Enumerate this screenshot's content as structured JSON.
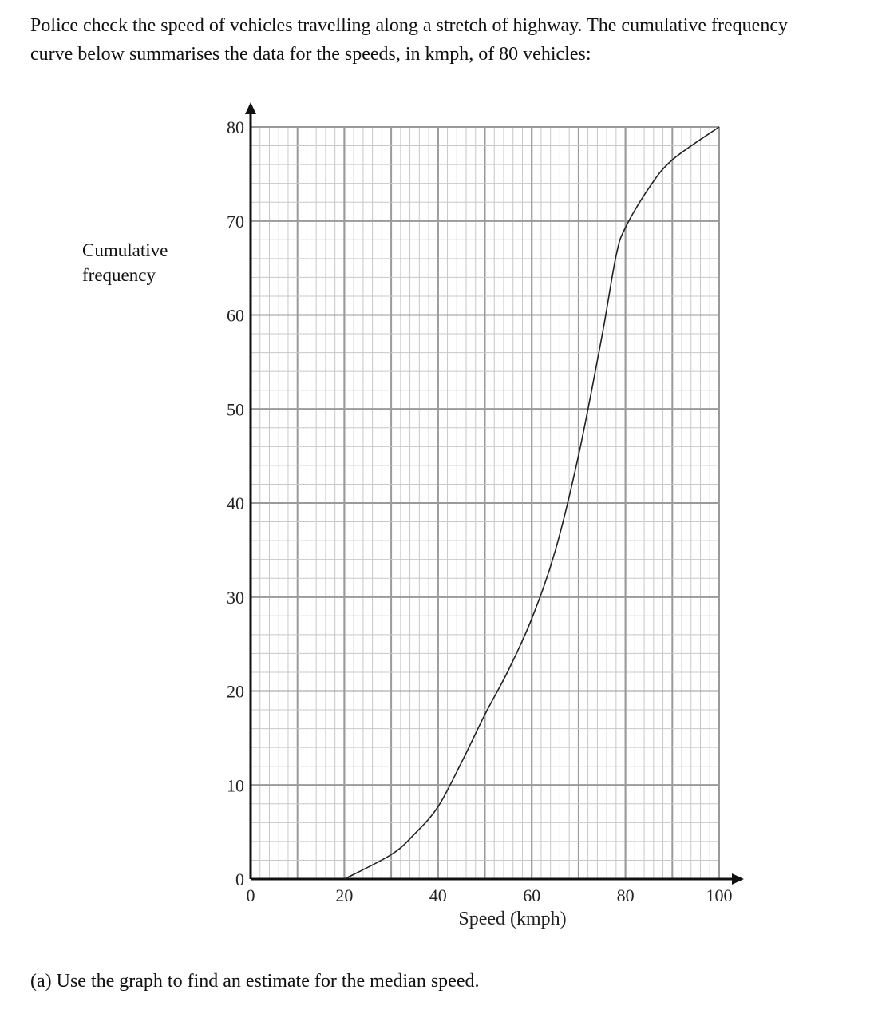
{
  "question": "Police check the speed of vehicles travelling along a stretch of highway.  The cumulative frequency curve below summarises the data for the speeds, in kmph, of 80 vehicles:",
  "part_a": "(a) Use the graph to find an estimate for the median speed.",
  "chart_data": {
    "type": "line",
    "xlabel": "Speed (kmph)",
    "ylabel": "Cumulative frequency",
    "x": [
      20,
      30,
      35,
      40,
      45,
      50,
      55,
      60,
      65,
      70,
      75,
      78,
      80,
      85,
      90,
      100
    ],
    "values": [
      0,
      2.6,
      4.8,
      7.7,
      12.4,
      17.5,
      22.2,
      27.7,
      34.9,
      45.1,
      57.8,
      66.3,
      69.3,
      73.5,
      76.5,
      80
    ],
    "color": "#222222",
    "xlim": [
      0,
      100
    ],
    "xticks": [
      0,
      20,
      40,
      60,
      80,
      100
    ],
    "ylim": [
      0,
      80
    ],
    "yticks": [
      0,
      10,
      20,
      30,
      40,
      50,
      60,
      70,
      80
    ],
    "grid": true
  }
}
